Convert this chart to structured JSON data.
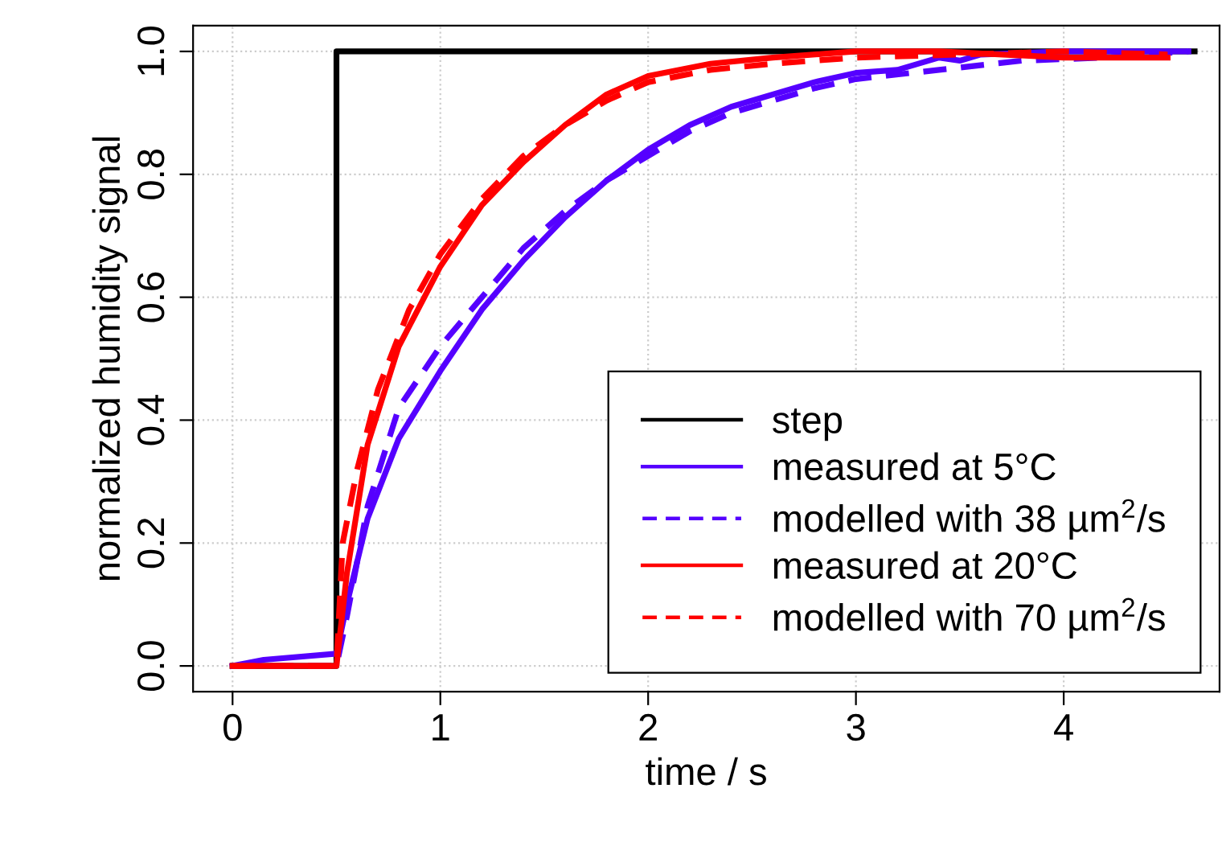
{
  "chart_data": {
    "type": "line",
    "xlabel": "time / s",
    "ylabel": "normalized humidity signal",
    "xlim": [
      -0.19,
      4.75
    ],
    "ylim": [
      -0.042,
      1.042
    ],
    "xticks": [
      0,
      1,
      2,
      3,
      4
    ],
    "yticks": [
      {
        "value": 0,
        "label": "0.0"
      },
      {
        "value": 0.2,
        "label": "0.2"
      },
      {
        "value": 0.4,
        "label": "0.4"
      },
      {
        "value": 0.6,
        "label": "0.6"
      },
      {
        "value": 0.8,
        "label": "0.8"
      },
      {
        "value": 1,
        "label": "1.0"
      }
    ],
    "grid": true,
    "legend": "bottom right",
    "series": [
      {
        "name": "step",
        "color": "#000000",
        "line_style": "solid",
        "x": [
          0,
          0.5,
          0.5,
          4.63
        ],
        "values": [
          0,
          0,
          1,
          1
        ]
      },
      {
        "name": "measured at 5°C",
        "color": "#5500ff",
        "line_style": "solid",
        "x": [
          0,
          0.15,
          0.5,
          0.55,
          0.65,
          0.8,
          1.0,
          1.2,
          1.4,
          1.6,
          1.8,
          2.0,
          2.2,
          2.4,
          2.6,
          2.8,
          3.0,
          3.2,
          3.4,
          3.5,
          3.6,
          4.0,
          4.6
        ],
        "values": [
          0,
          0.01,
          0.02,
          0.1,
          0.24,
          0.37,
          0.48,
          0.58,
          0.66,
          0.73,
          0.79,
          0.84,
          0.88,
          0.91,
          0.93,
          0.95,
          0.965,
          0.97,
          0.99,
          0.985,
          0.995,
          1.0,
          1.0
        ]
      },
      {
        "name": "modelled with 38 µm$^{2}$/s",
        "color": "#5500ff",
        "line_style": "dashed",
        "x": [
          0,
          0.5,
          0.55,
          0.65,
          0.8,
          1.0,
          1.2,
          1.4,
          1.6,
          1.8,
          2.0,
          2.2,
          2.4,
          2.6,
          2.8,
          3.0,
          3.4,
          3.8,
          4.2,
          4.6
        ],
        "values": [
          0,
          0,
          0.08,
          0.26,
          0.42,
          0.52,
          0.6,
          0.68,
          0.74,
          0.79,
          0.83,
          0.87,
          0.9,
          0.92,
          0.94,
          0.955,
          0.97,
          0.985,
          0.99,
          1.0
        ]
      },
      {
        "name": "measured at 20°C",
        "color": "#ff0000",
        "line_style": "solid",
        "x": [
          0,
          0.5,
          0.55,
          0.65,
          0.8,
          1.0,
          1.2,
          1.4,
          1.6,
          1.8,
          2.0,
          2.3,
          2.6,
          3.0,
          3.4,
          4.0,
          4.5
        ],
        "values": [
          0,
          0,
          0.15,
          0.36,
          0.52,
          0.65,
          0.75,
          0.82,
          0.88,
          0.93,
          0.96,
          0.98,
          0.99,
          1.0,
          1.0,
          0.99,
          0.99
        ]
      },
      {
        "name": "modelled with 70 µm$^{2}$/s",
        "color": "#ff0000",
        "line_style": "dashed",
        "x": [
          0,
          0.5,
          0.53,
          0.6,
          0.7,
          0.85,
          1.0,
          1.2,
          1.4,
          1.6,
          1.8,
          2.0,
          2.3,
          2.6,
          3.0,
          3.5,
          4.0,
          4.5
        ],
        "values": [
          0,
          0,
          0.2,
          0.32,
          0.45,
          0.58,
          0.67,
          0.76,
          0.83,
          0.88,
          0.92,
          0.95,
          0.97,
          0.98,
          0.99,
          0.995,
          1.0,
          0.995
        ]
      }
    ]
  }
}
